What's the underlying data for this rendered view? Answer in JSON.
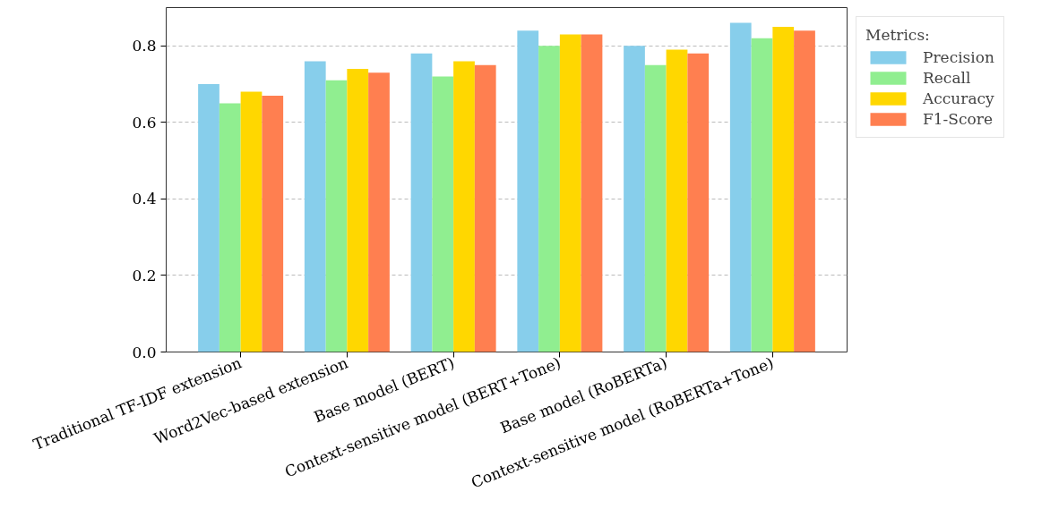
{
  "chart_data": {
    "type": "bar",
    "categories": [
      "Traditional TF-IDF extension",
      "Word2Vec-based extension",
      "Base model (BERT)",
      "Context-sensitive model (BERT+Tone)",
      "Base model (RoBERTa)",
      "Context-sensitive model (RoBERTa+Tone)"
    ],
    "series": [
      {
        "name": "Precision",
        "color": "#87ceeb",
        "values": [
          0.7,
          0.76,
          0.78,
          0.84,
          0.8,
          0.86
        ]
      },
      {
        "name": "Recall",
        "color": "#90ee90",
        "values": [
          0.65,
          0.71,
          0.72,
          0.8,
          0.75,
          0.82
        ]
      },
      {
        "name": "Accuracy",
        "color": "#ffd700",
        "values": [
          0.68,
          0.74,
          0.76,
          0.83,
          0.79,
          0.85
        ]
      },
      {
        "name": "F1-Score",
        "color": "#ff7f50",
        "values": [
          0.67,
          0.73,
          0.75,
          0.83,
          0.78,
          0.84
        ]
      }
    ],
    "legend_title": "Metrics:",
    "ylim": [
      0,
      0.9
    ],
    "yticks": [
      {
        "value": 0,
        "label": "0.0"
      },
      {
        "value": 0.2,
        "label": "0.2"
      },
      {
        "value": 0.4,
        "label": "0.4"
      },
      {
        "value": 0.6,
        "label": "0.6"
      },
      {
        "value": 0.8,
        "label": "0.8"
      }
    ],
    "grid": "y",
    "legend": "top right"
  }
}
